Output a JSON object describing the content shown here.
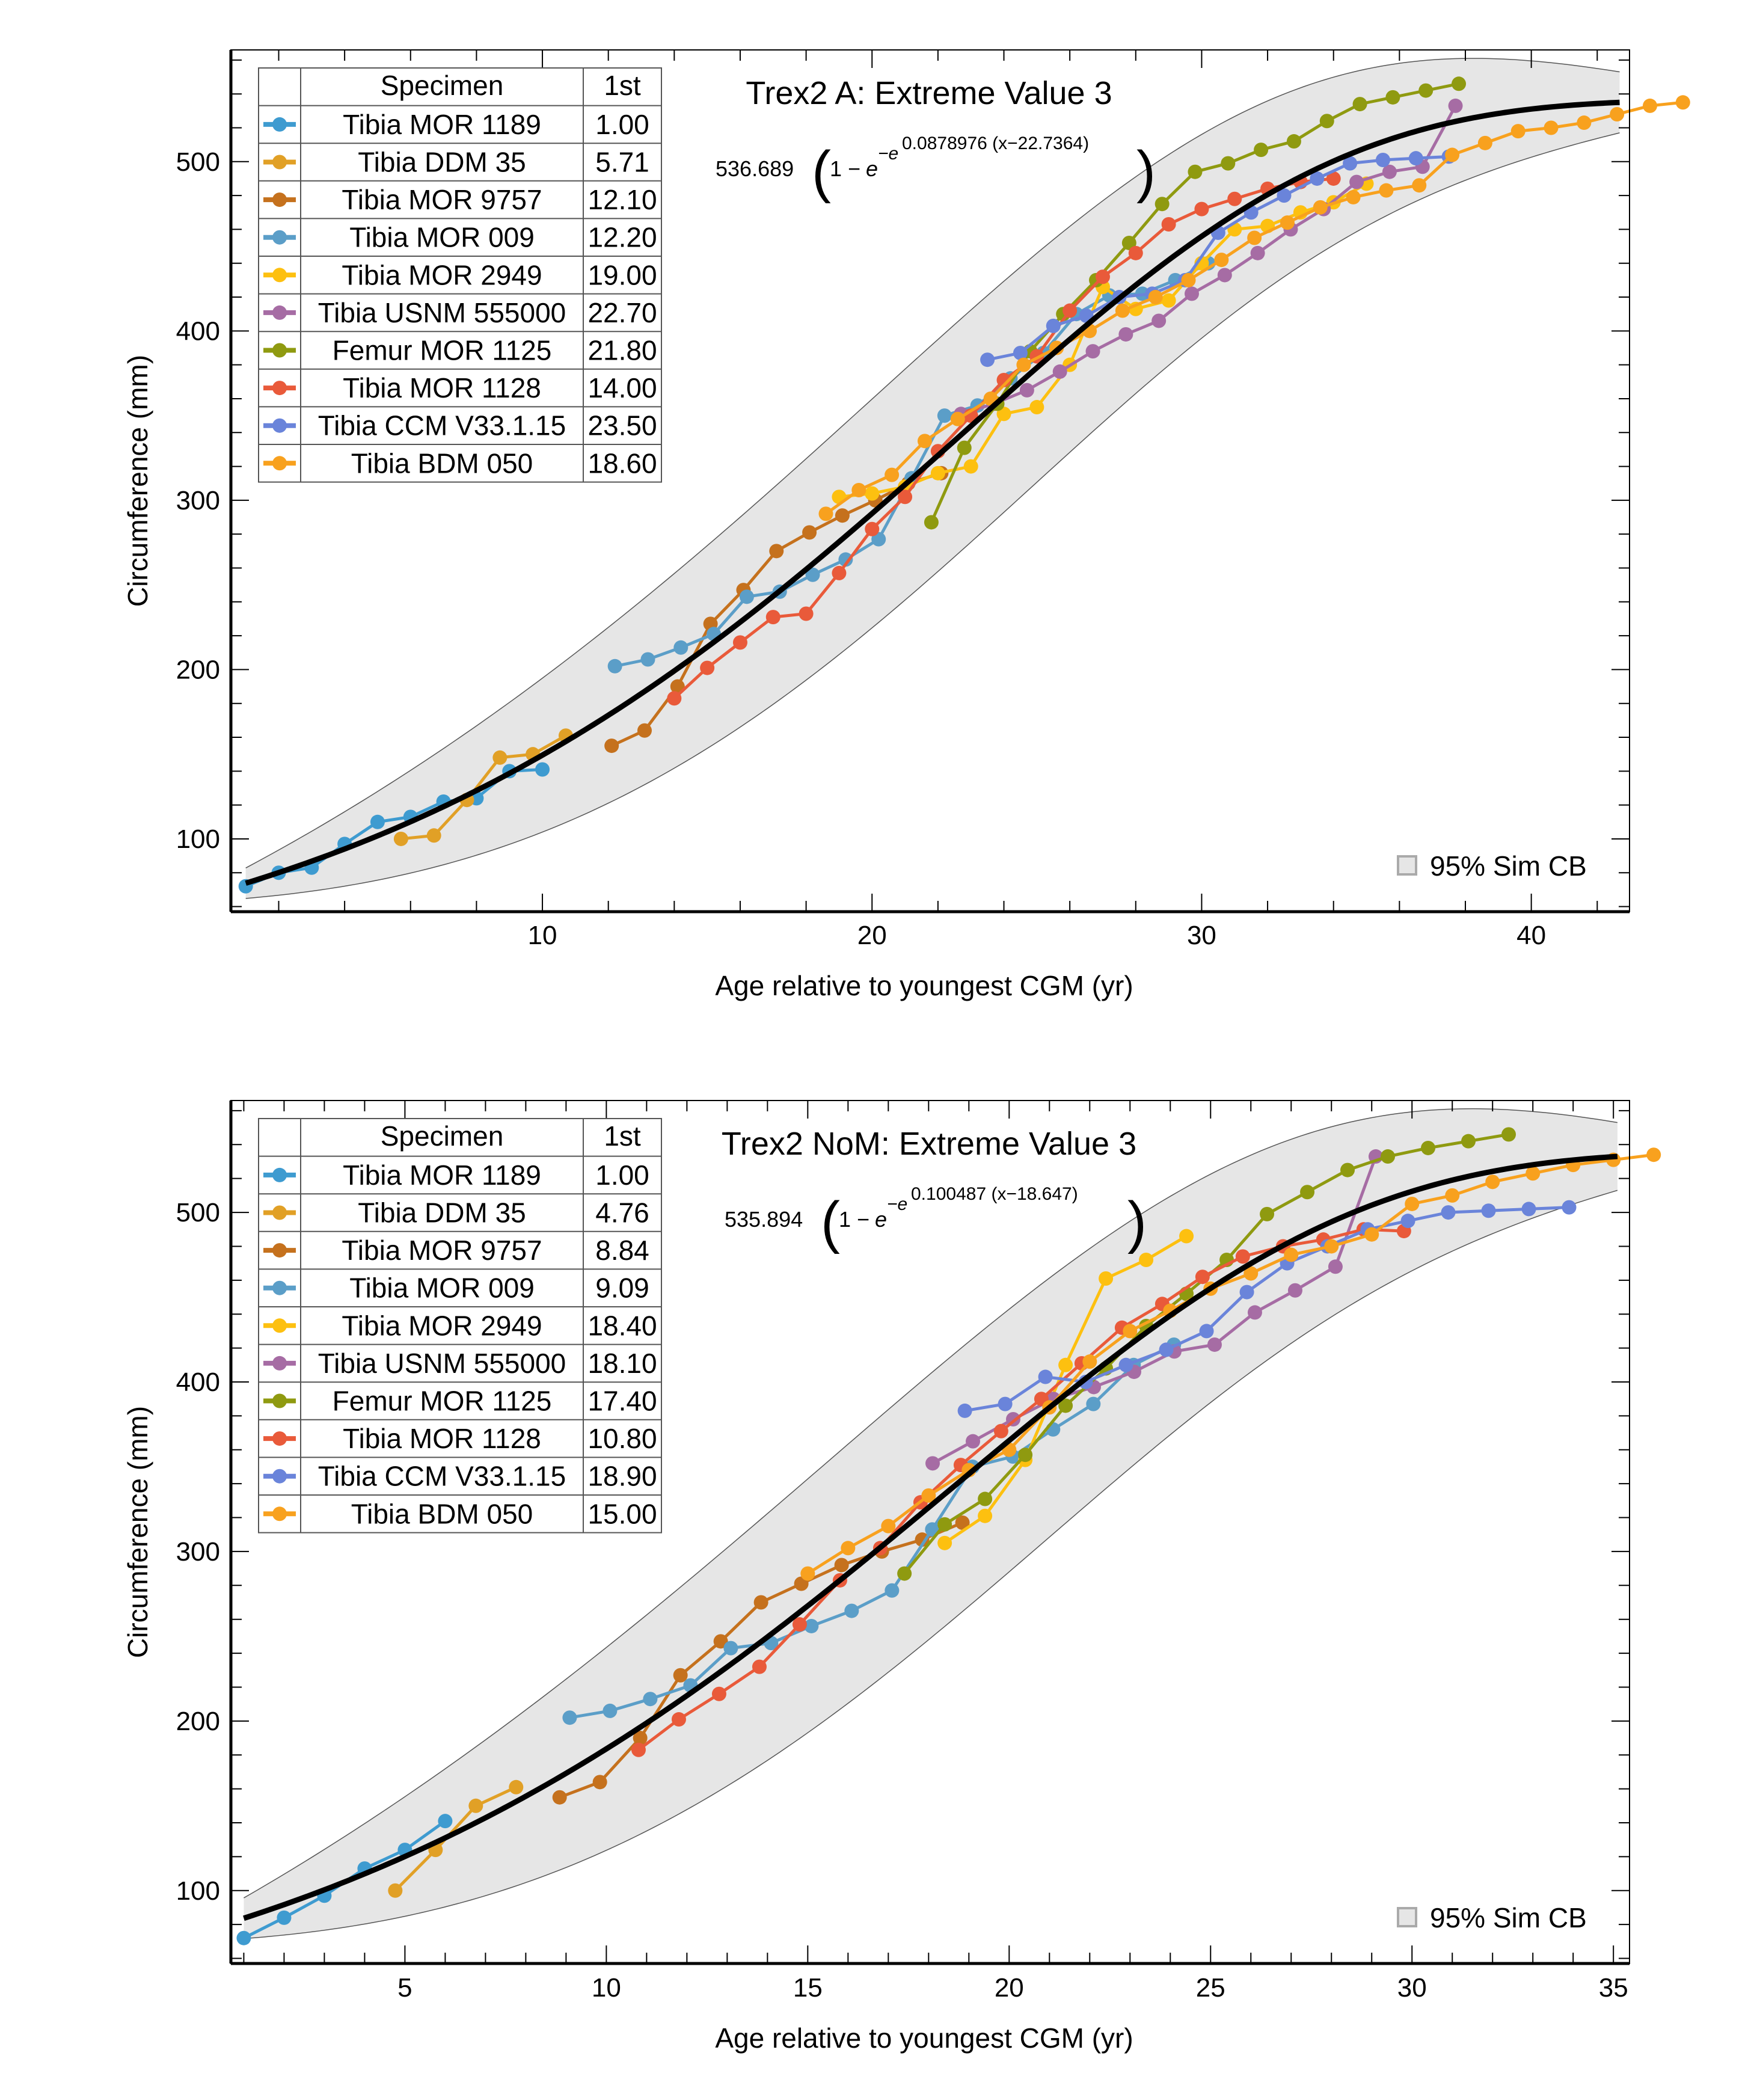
{
  "colors": {
    "fit_line": "#000000",
    "band_fill": "#e6e6e6",
    "band_edge": "#555555",
    "frame": "#000000"
  },
  "chart_data": [
    {
      "type": "line",
      "title": "Trex2 A: Extreme Value 3",
      "equation": {
        "coef": "536.689",
        "one_minus": "1 − ",
        "base": "e",
        "neg": "−e",
        "exponent": "0.0878976 (x−22.7364)"
      },
      "fit": {
        "a": 536.689,
        "b": 0.0878976,
        "c": 22.7364
      },
      "band_halfwidth": {
        "low_x": 9,
        "mid": 55,
        "high_x": 18
      },
      "xlabel": "Age relative to youngest CGM (yr)",
      "ylabel": "Circumference (mm)",
      "xlim": [
        0.55,
        42.98
      ],
      "ylim": [
        57,
        566
      ],
      "xticks": [
        10,
        20,
        30,
        40
      ],
      "yticks": [
        100,
        200,
        300,
        400,
        500
      ],
      "grid": false,
      "legend_header": {
        "specimen": "Specimen",
        "first": "1st"
      },
      "legend_position": "top-left",
      "band_legend": "95% Sim CB",
      "band_legend_position": "bottom-right",
      "series": [
        {
          "name": "Tibia MOR 1189",
          "first": "1.00",
          "x0": 1.0,
          "color": "#3e9bd0",
          "values": [
            72,
            80,
            83,
            97,
            110,
            113,
            122,
            124,
            140,
            141
          ]
        },
        {
          "name": "Tibia DDM 35",
          "first": "5.71",
          "x0": 5.71,
          "color": "#e1a026",
          "values": [
            100,
            102,
            123,
            148,
            150,
            161
          ]
        },
        {
          "name": "Tibia MOR 9757",
          "first": "12.10",
          "x0": 12.1,
          "color": "#c5711d",
          "values": [
            155,
            164,
            190,
            227,
            247,
            270,
            281,
            291,
            300,
            310,
            316
          ]
        },
        {
          "name": "Tibia MOR 009",
          "first": "12.20",
          "x0": 12.2,
          "color": "#5b9ec8",
          "values": [
            202,
            206,
            213,
            221,
            243,
            246,
            256,
            265,
            277,
            313,
            350,
            356,
            372,
            387,
            410,
            421,
            422,
            430,
            440
          ]
        },
        {
          "name": "Tibia MOR 2949",
          "first": "19.00",
          "x0": 19.0,
          "color": "#fdc010",
          "values": [
            302,
            304,
            308,
            316,
            320,
            351,
            355,
            380,
            426,
            413,
            418,
            440,
            460,
            462,
            470,
            476,
            487
          ]
        },
        {
          "name": "Tibia  USNM  555000",
          "first": "22.70",
          "x0": 22.7,
          "color": "#a66ca4",
          "values": [
            351,
            357,
            365,
            376,
            388,
            398,
            406,
            422,
            433,
            446,
            460,
            472,
            488,
            494,
            497,
            533
          ]
        },
        {
          "name": "Femur MOR 1125",
          "first": "21.80",
          "x0": 21.8,
          "color": "#8f9a10",
          "values": [
            287,
            331,
            357,
            388,
            410,
            430,
            452,
            475,
            494,
            499,
            507,
            512,
            524,
            534,
            538,
            542,
            546
          ]
        },
        {
          "name": "Tibia MOR 1128",
          "first": "14.00",
          "x0": 14.0,
          "color": "#e95a3a",
          "values": [
            183,
            201,
            216,
            231,
            233,
            257,
            283,
            302,
            329,
            350,
            371,
            385,
            412,
            432,
            446,
            463,
            472,
            478,
            484,
            488,
            490
          ]
        },
        {
          "name": "Tibia CCM V33.1.15",
          "first": "23.50",
          "x0": 23.5,
          "color": "#6a84da",
          "values": [
            383,
            387,
            403,
            409,
            420,
            422,
            430,
            458,
            470,
            480,
            490,
            499,
            501,
            502,
            503
          ]
        },
        {
          "name": "Tibia BDM 050",
          "first": "18.60",
          "x0": 18.6,
          "color": "#f8a11e",
          "values": [
            292,
            306,
            315,
            335,
            348,
            360,
            380,
            390,
            400,
            412,
            420,
            430,
            442,
            455,
            464,
            473,
            479,
            483,
            486,
            504,
            511,
            518,
            520,
            523,
            528,
            533,
            535
          ]
        }
      ]
    },
    {
      "type": "line",
      "title": "Trex2 NoM: Extreme Value 3",
      "equation": {
        "coef": "535.894",
        "one_minus": "1 − ",
        "base": "e",
        "neg": "−e",
        "exponent": "0.100487 (x−18.647)"
      },
      "fit": {
        "a": 535.894,
        "b": 0.100487,
        "c": 18.647
      },
      "band_halfwidth": {
        "low_x": 12,
        "mid": 62,
        "high_x": 20
      },
      "xlabel": "Age relative to youngest CGM (yr)",
      "ylabel": "Circumference (mm)",
      "xlim": [
        0.68,
        35.4
      ],
      "ylim": [
        57,
        566
      ],
      "xticks": [
        5,
        10,
        15,
        20,
        25,
        30,
        35
      ],
      "yticks": [
        100,
        200,
        300,
        400,
        500
      ],
      "grid": false,
      "legend_header": {
        "specimen": "Specimen",
        "first": "1st"
      },
      "legend_position": "top-left",
      "band_legend": "95% Sim CB",
      "band_legend_position": "bottom-right",
      "series": [
        {
          "name": "Tibia MOR 1189",
          "first": "1.00",
          "x0": 1.0,
          "color": "#3e9bd0",
          "values": [
            72,
            84,
            97,
            113,
            124,
            141
          ]
        },
        {
          "name": "Tibia DDM 35",
          "first": "4.76",
          "x0": 4.76,
          "color": "#e1a026",
          "values": [
            100,
            124,
            150,
            161
          ]
        },
        {
          "name": "Tibia MOR 9757",
          "first": "8.84",
          "x0": 8.84,
          "color": "#c5711d",
          "values": [
            155,
            164,
            190,
            227,
            247,
            270,
            281,
            292,
            300,
            307,
            317
          ]
        },
        {
          "name": "Tibia MOR 009",
          "first": "9.09",
          "x0": 9.09,
          "color": "#5b9ec8",
          "values": [
            202,
            206,
            213,
            221,
            243,
            246,
            256,
            265,
            277,
            313,
            350,
            356,
            372,
            387,
            410,
            422
          ]
        },
        {
          "name": "Tibia MOR 2949",
          "first": "18.40",
          "x0": 18.4,
          "color": "#fdc010",
          "values": [
            305,
            321,
            354,
            410,
            461,
            472,
            486
          ]
        },
        {
          "name": "Tibia  USNM  555000",
          "first": "18.10",
          "x0": 18.1,
          "color": "#a66ca4",
          "values": [
            352,
            365,
            378,
            390,
            397,
            406,
            418,
            422,
            441,
            454,
            468,
            533
          ]
        },
        {
          "name": "Femur MOR 1125",
          "first": "17.40",
          "x0": 17.4,
          "color": "#8f9a10",
          "values": [
            287,
            316,
            331,
            357,
            386,
            408,
            433,
            452,
            472,
            499,
            512,
            525,
            533,
            538,
            542,
            546
          ]
        },
        {
          "name": "Tibia MOR 1128",
          "first": "10.80",
          "x0": 10.8,
          "color": "#e95a3a",
          "values": [
            183,
            201,
            216,
            232,
            257,
            283,
            302,
            329,
            351,
            371,
            390,
            411,
            432,
            446,
            462,
            474,
            480,
            484,
            490,
            489
          ]
        },
        {
          "name": "Tibia CCM V33.1.15",
          "first": "18.90",
          "x0": 18.9,
          "color": "#6a84da",
          "values": [
            383,
            387,
            403,
            400,
            410,
            419,
            430,
            453,
            470,
            480,
            490,
            495,
            500,
            501,
            502,
            503
          ]
        },
        {
          "name": "Tibia BDM 050",
          "first": "15.00",
          "x0": 15.0,
          "color": "#f8a11e",
          "values": [
            287,
            302,
            315,
            333,
            348,
            360,
            385,
            412,
            430,
            442,
            455,
            464,
            475,
            480,
            487,
            505,
            510,
            518,
            523,
            528,
            531,
            534
          ]
        }
      ]
    }
  ]
}
